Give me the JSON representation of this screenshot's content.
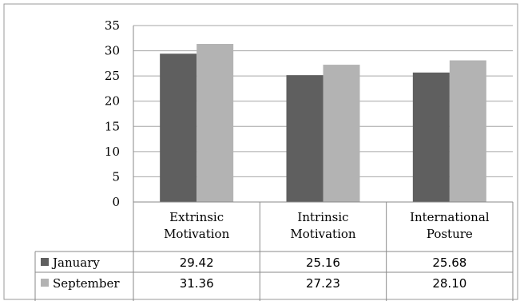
{
  "chart_data": {
    "type": "bar",
    "categories": [
      [
        "Extrinsic",
        "Motivation"
      ],
      [
        "Intrinsic",
        "Motivation"
      ],
      [
        "International",
        "Posture"
      ]
    ],
    "series": [
      {
        "name": "January",
        "values": [
          29.42,
          25.16,
          25.68
        ],
        "display": [
          "29.42",
          "25.16",
          "25.68"
        ],
        "color": "#5f5f5f"
      },
      {
        "name": "September",
        "values": [
          31.36,
          27.23,
          28.1
        ],
        "display": [
          "31.36",
          "27.23",
          "28.10"
        ],
        "color": "#b3b3b3"
      }
    ],
    "ylim": [
      0,
      35
    ],
    "yticks": [
      0,
      5,
      10,
      15,
      20,
      25,
      30,
      35
    ],
    "grid": true,
    "legend": "data-table-left"
  }
}
